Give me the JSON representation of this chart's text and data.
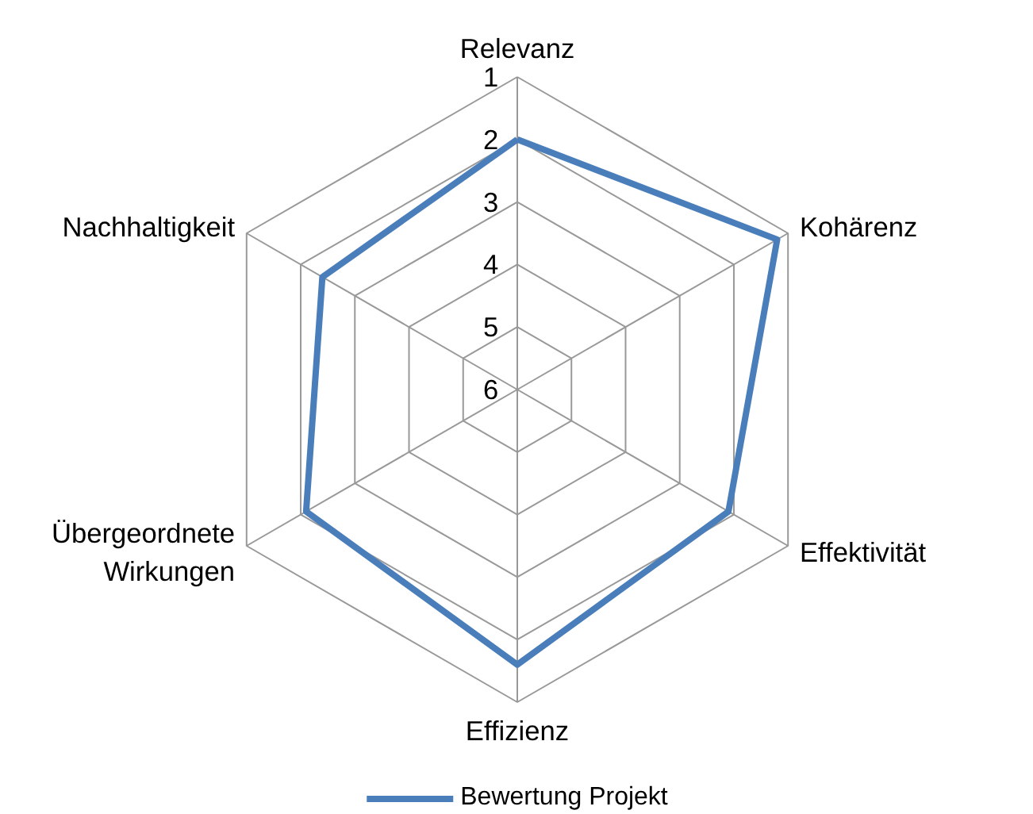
{
  "chart_data": {
    "type": "radar",
    "categories": [
      "Relevanz",
      "Kohärenz",
      "Effektivität",
      "Effizienz",
      "Übergeordnete Wirkungen",
      "Nachhaltigkeit"
    ],
    "series": [
      {
        "name": "Bewertung Projekt",
        "color": "#4a7ebb",
        "values": [
          2.0,
          1.2,
          2.1,
          1.6,
          2.1,
          2.4
        ]
      }
    ],
    "ylim": [
      6,
      1
    ],
    "yticks": [
      1,
      2,
      3,
      4,
      5,
      6
    ],
    "grid": true,
    "legend": "bottom",
    "marker": "none",
    "line_style": "solid"
  }
}
